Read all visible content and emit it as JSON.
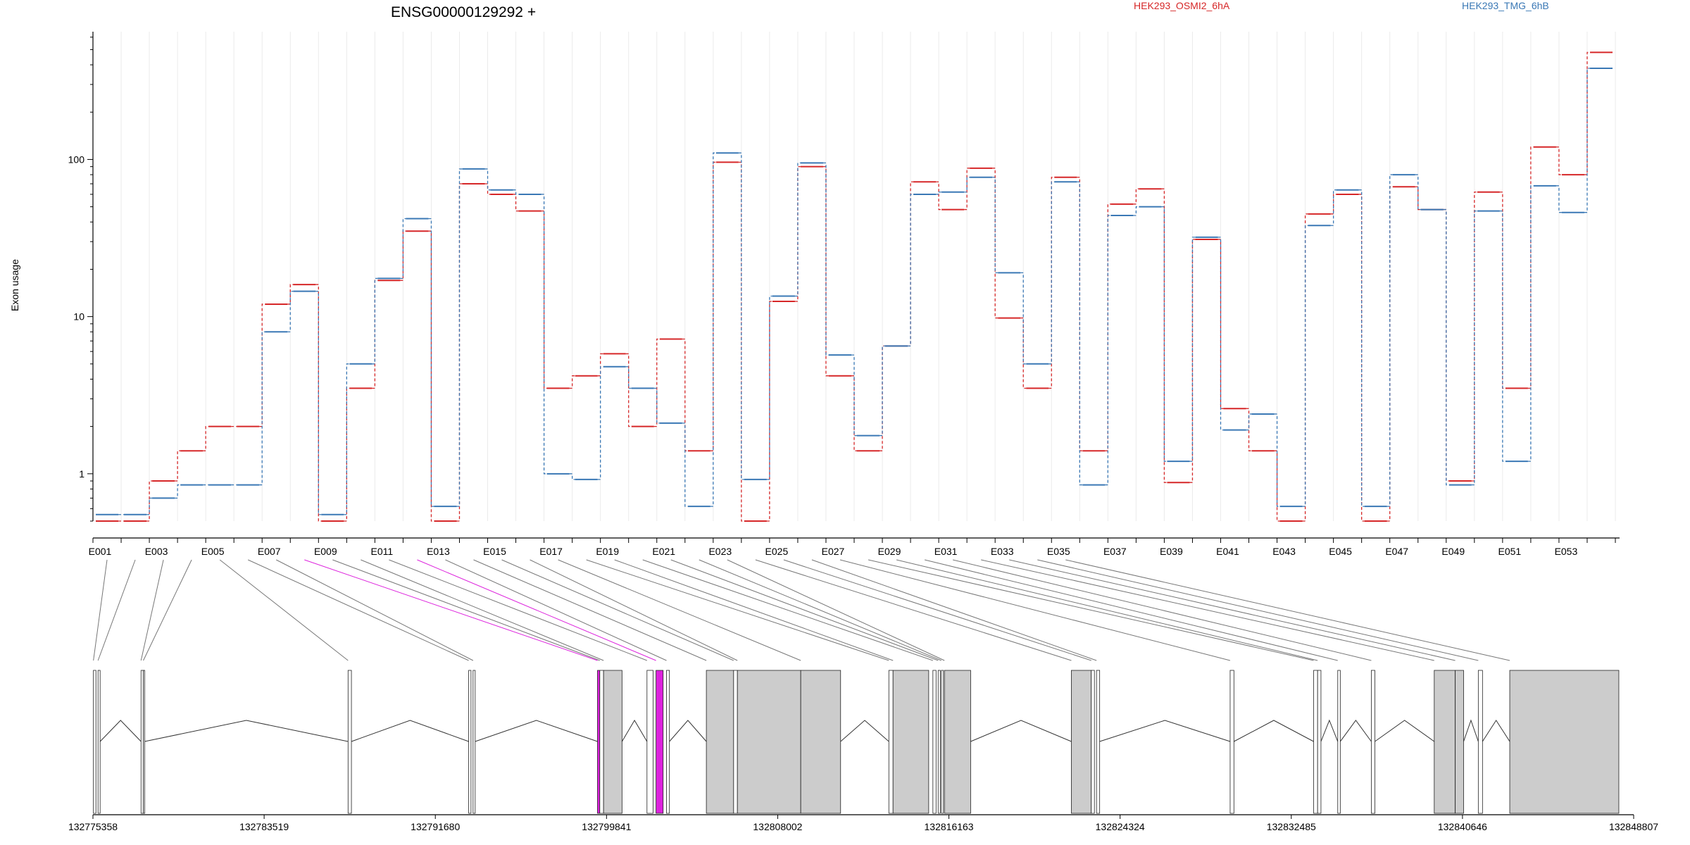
{
  "chart_data": {
    "type": "line",
    "title": "ENSG00000129292 +",
    "ylabel": "Exon usage",
    "xlabel": "",
    "y_scale": "log",
    "ylim": [
      0.5,
      650
    ],
    "y_ticks": [
      1,
      10,
      100
    ],
    "y_tick_labels": [
      "1",
      "10",
      "100"
    ],
    "grid": "vertical",
    "legend": "top",
    "colors": {
      "osmi": "#d62728",
      "tmg": "#3a78b5",
      "highlight": "#dd22dd",
      "exon_fill": "#cccccc"
    },
    "categories": [
      "E001",
      "E002",
      "E003",
      "E004",
      "E005",
      "E006",
      "E007",
      "E008",
      "E009",
      "E010",
      "E011",
      "E012",
      "E013",
      "E014",
      "E015",
      "E016",
      "E017",
      "E018",
      "E019",
      "E020",
      "E021",
      "E022",
      "E023",
      "E024",
      "E025",
      "E026",
      "E027",
      "E028",
      "E029",
      "E030",
      "E031",
      "E032",
      "E033",
      "E034",
      "E035",
      "E036",
      "E037",
      "E038",
      "E039",
      "E040",
      "E041",
      "E042",
      "E043",
      "E044",
      "E045",
      "E046",
      "E047",
      "E048",
      "E049",
      "E050",
      "E051",
      "E052",
      "E053",
      "E054"
    ],
    "x_tick_labels": [
      "E001",
      "E003",
      "E005",
      "E007",
      "E009",
      "E011",
      "E013",
      "E015",
      "E017",
      "E019",
      "E021",
      "E023",
      "E025",
      "E027",
      "E029",
      "E031",
      "E033",
      "E035",
      "E037",
      "E039",
      "E041",
      "E043",
      "E045",
      "E047",
      "E049",
      "E051",
      "E053"
    ],
    "series": [
      {
        "name": "HEK293_OSMI2_6hA",
        "color": "#d62728",
        "values": [
          0.5,
          0.5,
          0.9,
          1.4,
          2,
          2,
          12,
          16,
          0.5,
          3.5,
          17,
          35,
          0.5,
          70,
          60,
          47,
          3.5,
          4.2,
          5.8,
          2,
          7.2,
          1.4,
          96,
          0.5,
          12.5,
          90,
          4.2,
          1.4,
          6.5,
          72,
          48,
          88,
          9.8,
          3.5,
          77,
          1.4,
          52,
          65,
          0.88,
          31,
          2.6,
          1.4,
          0.5,
          45,
          60,
          0.5,
          67,
          48,
          0.9,
          62,
          3.5,
          120,
          80,
          480
        ]
      },
      {
        "name": "HEK293_TMG_6hB",
        "color": "#3a78b5",
        "values": [
          0.55,
          0.55,
          0.7,
          0.85,
          0.85,
          0.85,
          8,
          14.5,
          0.55,
          5,
          17.5,
          42,
          0.62,
          87,
          64,
          60,
          1,
          0.92,
          4.8,
          3.5,
          2.1,
          0.62,
          110,
          0.92,
          13.5,
          95,
          5.7,
          1.75,
          6.5,
          60,
          62,
          77,
          19,
          5,
          72,
          0.85,
          44,
          50,
          1.2,
          32,
          1.9,
          2.4,
          0.62,
          38,
          64,
          0.62,
          80,
          48,
          0.85,
          47,
          1.2,
          68,
          46,
          380
        ]
      }
    ],
    "genomic_axis": {
      "start": 132775358,
      "end": 132848807,
      "tick_labels": [
        "132775358",
        "132783519",
        "132791680",
        "132799841",
        "132808002",
        "132816163",
        "132824324",
        "132832485",
        "132840646",
        "132848807"
      ]
    },
    "exons": [
      [
        132775380,
        132775500
      ],
      [
        132775600,
        132775700
      ],
      [
        132777650,
        132777760
      ],
      [
        132777760,
        132777820
      ],
      [
        132787520,
        132787680
      ],
      [
        132793270,
        132793380
      ],
      [
        132793480,
        132793580
      ],
      [
        132799410,
        132799520
      ],
      [
        132799520,
        132799700
      ],
      [
        132799700,
        132800580
      ],
      [
        132801770,
        132802060
      ],
      [
        132802200,
        132802540
      ],
      [
        132802700,
        132802840
      ],
      [
        132804600,
        132805900
      ],
      [
        132805900,
        132806080
      ],
      [
        132806080,
        132809100
      ],
      [
        132809100,
        132811000
      ],
      [
        132813300,
        132813500
      ],
      [
        132813500,
        132815200
      ],
      [
        132815400,
        132815550
      ],
      [
        132815650,
        132815750
      ],
      [
        132815800,
        132815900
      ],
      [
        132815950,
        132817200
      ],
      [
        132822000,
        132822950
      ],
      [
        132822950,
        132823100
      ],
      [
        132823200,
        132823350
      ],
      [
        132829570,
        132829750
      ],
      [
        132833550,
        132833740
      ],
      [
        132833740,
        132833900
      ],
      [
        132834700,
        132834820
      ],
      [
        132836300,
        132836470
      ],
      [
        132839300,
        132840300
      ],
      [
        132840300,
        132840700
      ],
      [
        132841400,
        132841600
      ],
      [
        132842900,
        132848100
      ]
    ],
    "highlighted_exons": [
      7,
      11
    ]
  },
  "legend": [
    {
      "label": "HEK293_OSMI2_6hA",
      "color": "#d62728"
    },
    {
      "label": "HEK293_TMG_6hB",
      "color": "#3a78b5"
    }
  ]
}
